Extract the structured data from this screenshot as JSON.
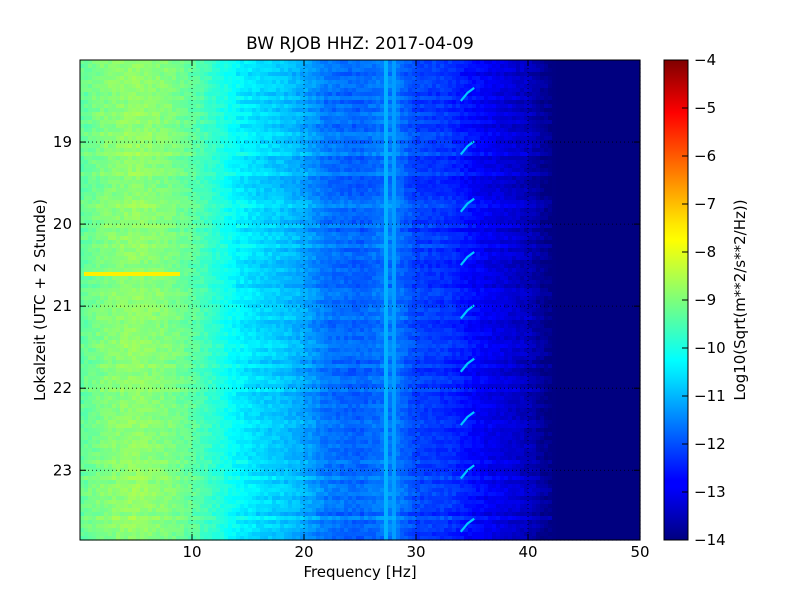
{
  "chart_data": {
    "type": "heatmap",
    "title": "BW RJOB HHZ: 2017-04-09",
    "xlabel": "Frequency [Hz]",
    "ylabel": "Lokalzeit (UTC + 2 Stunde)",
    "colorbar_label": "Log10(Sqrt(m**2/s**2/Hz))",
    "xlim": [
      0,
      50
    ],
    "ylim": [
      18.0,
      23.85
    ],
    "y_inverted": true,
    "x_ticks": [
      10,
      20,
      30,
      40,
      50
    ],
    "x_tick_labels": [
      "10",
      "20",
      "30",
      "40",
      "50"
    ],
    "y_ticks": [
      19,
      20,
      21,
      22,
      23
    ],
    "y_tick_labels": [
      "19",
      "20",
      "21",
      "22",
      "23"
    ],
    "color_range": [
      -14,
      -4
    ],
    "colorbar_ticks": [
      -4,
      -5,
      -6,
      -7,
      -8,
      -9,
      -10,
      -11,
      -12,
      -13,
      -14
    ],
    "colorbar_tick_labels": [
      "−4",
      "−5",
      "−6",
      "−7",
      "−8",
      "−9",
      "−10",
      "−11",
      "−12",
      "−13",
      "−14"
    ],
    "colormap": "jet",
    "grid": "dotted",
    "level_profile": {
      "frequency_hz": [
        0,
        2,
        5,
        8,
        10,
        12,
        14,
        16,
        18,
        20,
        22,
        25,
        28,
        30,
        33,
        35,
        38,
        40,
        41.5,
        42.5,
        45,
        50
      ],
      "log10_amplitude": [
        -9.3,
        -9.0,
        -8.8,
        -9.0,
        -9.3,
        -9.8,
        -10.3,
        -10.6,
        -10.8,
        -11.1,
        -11.6,
        -11.8,
        -11.5,
        -12.1,
        -12.3,
        -12.7,
        -13.1,
        -13.4,
        -13.8,
        -14.0,
        -14.0,
        -14.0
      ]
    },
    "features": [
      {
        "kind": "broadband_pulse",
        "time": 20.6,
        "frequency_range_hz": [
          0.5,
          9
        ],
        "log10_amplitude": -7.6
      },
      {
        "kind": "spectral_line",
        "frequency_hz": 10.0,
        "log10_amplitude": -9.7
      },
      {
        "kind": "spectral_line",
        "frequency_hz": 11.5,
        "log10_amplitude": -9.9
      },
      {
        "kind": "spectral_line",
        "frequency_hz": 12.3,
        "log10_amplitude": -10.0
      },
      {
        "kind": "spectral_line",
        "frequency_hz": 27.3,
        "log10_amplitude": -11.0
      },
      {
        "kind": "spectral_line",
        "frequency_hz": 28.0,
        "log10_amplitude": -11.2
      },
      {
        "kind": "periodic_sweep",
        "frequency_range_hz": [
          34.0,
          35.2
        ],
        "times": [
          18.4,
          19.05,
          19.75,
          20.4,
          21.05,
          21.7,
          22.35,
          23.0,
          23.65
        ],
        "log10_amplitude": -10.8
      }
    ]
  }
}
